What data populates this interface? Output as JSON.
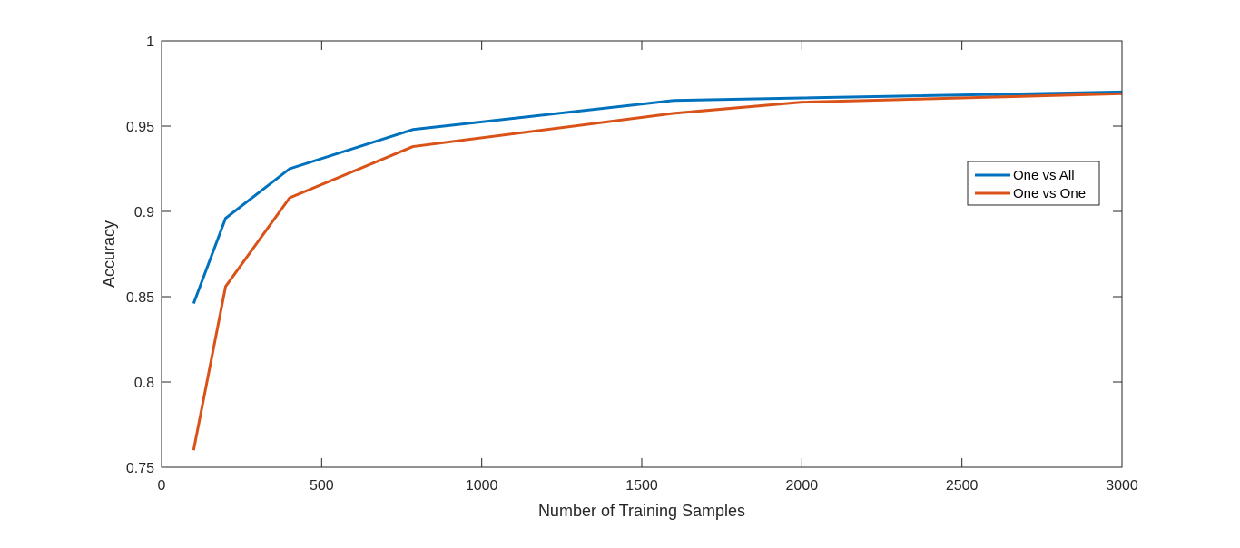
{
  "chart_data": {
    "type": "line",
    "title": "",
    "xlabel": "Number of Training Samples",
    "ylabel": "Accuracy",
    "xlim": [
      0,
      3000
    ],
    "ylim": [
      0.75,
      1
    ],
    "xticks": [
      0,
      500,
      1000,
      1500,
      2000,
      2500,
      3000
    ],
    "xtick_labels": [
      "0",
      "500",
      "1000",
      "1500",
      "2000",
      "2500",
      "3000"
    ],
    "yticks": [
      0.75,
      0.8,
      0.85,
      0.9,
      0.95,
      1
    ],
    "ytick_labels": [
      "0.75",
      "0.8",
      "0.85",
      "0.9",
      "0.95",
      "1"
    ],
    "grid": false,
    "legend_position": "right",
    "series": [
      {
        "name": "One vs All",
        "color": "#0072BD",
        "x": [
          100,
          200,
          400,
          785,
          1600,
          2000,
          3000
        ],
        "y": [
          0.846,
          0.896,
          0.925,
          0.948,
          0.965,
          0.9665,
          0.97
        ]
      },
      {
        "name": "One vs One",
        "color": "#D95319",
        "x": [
          100,
          200,
          400,
          785,
          1600,
          2000,
          3000
        ],
        "y": [
          0.76,
          0.856,
          0.908,
          0.938,
          0.9575,
          0.964,
          0.969
        ]
      }
    ]
  }
}
